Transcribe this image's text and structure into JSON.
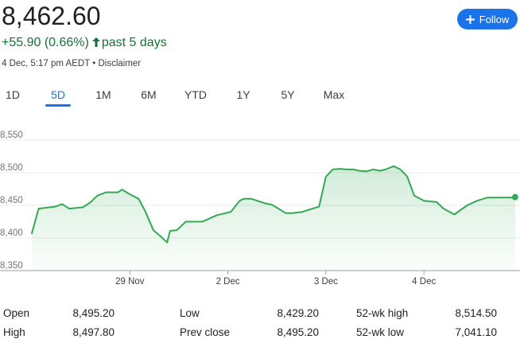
{
  "quote": {
    "price": "8,462.60",
    "change": "+55.90 (0.66%)",
    "period": "past 5 days",
    "timestamp": "4 Dec, 5:17 pm AEDT",
    "separator": "•",
    "disclaimer": "Disclaimer",
    "up_color": "#137333"
  },
  "follow_button": {
    "label": "Follow",
    "icon": "plus-icon",
    "color": "#1a73e8"
  },
  "tabs": [
    {
      "label": "1D",
      "active": false
    },
    {
      "label": "5D",
      "active": true
    },
    {
      "label": "1M",
      "active": false
    },
    {
      "label": "6M",
      "active": false
    },
    {
      "label": "YTD",
      "active": false
    },
    {
      "label": "1Y",
      "active": false
    },
    {
      "label": "5Y",
      "active": false
    },
    {
      "label": "Max",
      "active": false
    }
  ],
  "chart_data": {
    "type": "area",
    "line_color": "#34a853",
    "grid": true,
    "ylim": [
      8350,
      8575
    ],
    "y_ticks": [
      "8,550",
      "8,500",
      "8,450",
      "8,400",
      "8,350"
    ],
    "y_tick_values": [
      8550,
      8500,
      8450,
      8400,
      8350
    ],
    "x_ticks": [
      "29 Nov",
      "2 Dec",
      "3 Dec",
      "4 Dec"
    ],
    "x_tick_values": [
      1.0,
      2.0,
      3.0,
      4.0
    ],
    "x": [
      0.0,
      0.07,
      0.24,
      0.31,
      0.38,
      0.52,
      0.6,
      0.67,
      0.76,
      0.88,
      0.92,
      1.0,
      1.09,
      1.16,
      1.24,
      1.31,
      1.38,
      1.41,
      1.48,
      1.57,
      1.64,
      1.74,
      1.89,
      2.03,
      2.12,
      2.16,
      2.24,
      2.38,
      2.45,
      2.59,
      2.66,
      2.76,
      2.93,
      3.0,
      3.07,
      3.14,
      3.21,
      3.28,
      3.34,
      3.41,
      3.48,
      3.55,
      3.61,
      3.69,
      3.76,
      3.83,
      3.9,
      4.0,
      4.07,
      4.13,
      4.2,
      4.31,
      4.44,
      4.54,
      4.65,
      4.76,
      4.88,
      4.93
    ],
    "values": [
      8407,
      8445,
      8448,
      8452,
      8445,
      8447,
      8455,
      8465,
      8470,
      8470,
      8474,
      8467,
      8460,
      8440,
      8412,
      8403,
      8393,
      8411,
      8412,
      8425,
      8425,
      8425,
      8435,
      8440,
      8457,
      8460,
      8460,
      8453,
      8451,
      8438,
      8438,
      8440,
      8448,
      8494,
      8505,
      8506,
      8505,
      8505,
      8503,
      8502,
      8505,
      8503,
      8505,
      8510,
      8505,
      8494,
      8465,
      8457,
      8456,
      8455,
      8445,
      8436,
      8450,
      8457,
      8462,
      8462,
      8462,
      8462.6
    ]
  },
  "stats": [
    {
      "label": "Open",
      "value": "8,495.20"
    },
    {
      "label": "High",
      "value": "8,497.80"
    },
    {
      "label": "Low",
      "value": "8,429.20"
    },
    {
      "label": "Prev close",
      "value": "8,495.20"
    },
    {
      "label": "52-wk high",
      "value": "8,514.50"
    },
    {
      "label": "52-wk low",
      "value": "7,041.10"
    }
  ]
}
